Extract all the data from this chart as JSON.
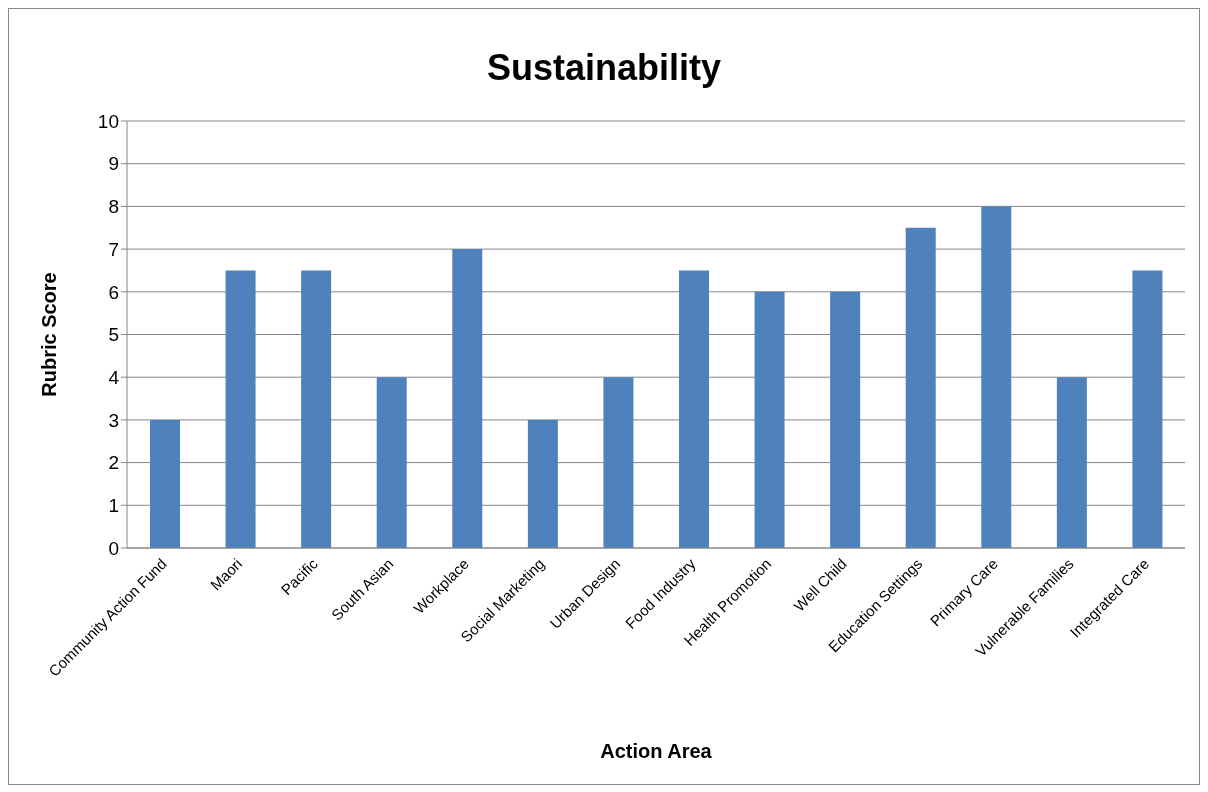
{
  "chart_data": {
    "type": "bar",
    "title": "Sustainability",
    "xlabel": "Action Area",
    "ylabel": "Rubric Score",
    "categories": [
      "Community Action Fund",
      "Maori",
      "Pacific",
      "South Asian",
      "Workplace",
      "Social Marketing",
      "Urban Design",
      "Food Industry",
      "Health Promotion",
      "Well Child",
      "Education Settings",
      "Primary Care",
      "Vulnerable Families",
      "Integrated Care"
    ],
    "values": [
      3,
      6.5,
      6.5,
      4,
      7,
      3,
      4,
      6.5,
      6,
      6,
      7.5,
      8,
      4,
      6.5
    ],
    "color": "#4f81bd",
    "ylim": [
      0,
      10
    ],
    "yticks": [
      0,
      1,
      2,
      3,
      4,
      5,
      6,
      7,
      8,
      9,
      10
    ],
    "grid": "y",
    "legend": false
  }
}
